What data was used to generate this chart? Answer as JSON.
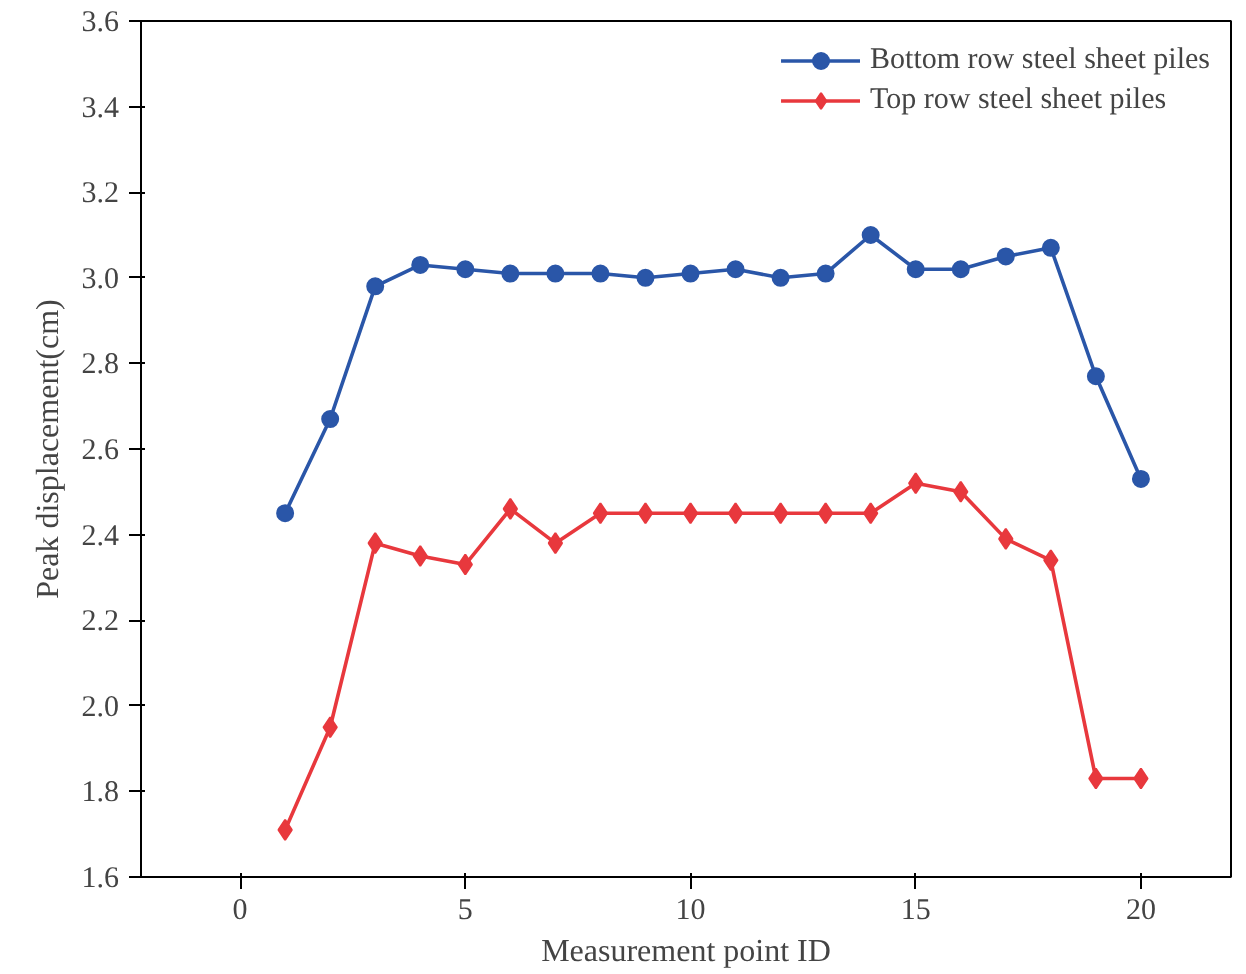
{
  "chart_data": {
    "type": "line",
    "xlabel": "Measurement point ID",
    "ylabel": "Peak displacement(cm)",
    "x": [
      1,
      2,
      3,
      4,
      5,
      6,
      7,
      8,
      9,
      10,
      11,
      12,
      13,
      14,
      15,
      16,
      17,
      18,
      19,
      20
    ],
    "series": [
      {
        "name": "Bottom row steel sheet piles",
        "color": "#2a56a8",
        "marker": "circle",
        "values": [
          2.45,
          2.67,
          2.98,
          3.03,
          3.02,
          3.01,
          3.01,
          3.01,
          3.0,
          3.01,
          3.02,
          3.0,
          3.01,
          3.1,
          3.02,
          3.02,
          3.05,
          3.07,
          2.77,
          2.53
        ]
      },
      {
        "name": "Top row steel sheet piles",
        "color": "#e8383d",
        "marker": "diamond",
        "values": [
          1.71,
          1.95,
          2.38,
          2.35,
          2.33,
          2.46,
          2.38,
          2.45,
          2.45,
          2.45,
          2.45,
          2.45,
          2.45,
          2.45,
          2.52,
          2.5,
          2.39,
          2.34,
          1.83,
          1.83
        ]
      }
    ],
    "xlim": [
      -2.2,
      22
    ],
    "xticks": [
      0,
      5,
      10,
      15,
      20
    ],
    "ylim": [
      1.6,
      3.6
    ],
    "yticks": [
      1.6,
      1.8,
      {
        "value": 2,
        "label": "2.0"
      },
      2.2,
      2.4,
      2.6,
      2.8,
      {
        "value": 3,
        "label": "3.0"
      },
      3.2,
      3.4,
      3.6
    ],
    "grid": false,
    "legend": "top right",
    "line_style": "solid"
  }
}
